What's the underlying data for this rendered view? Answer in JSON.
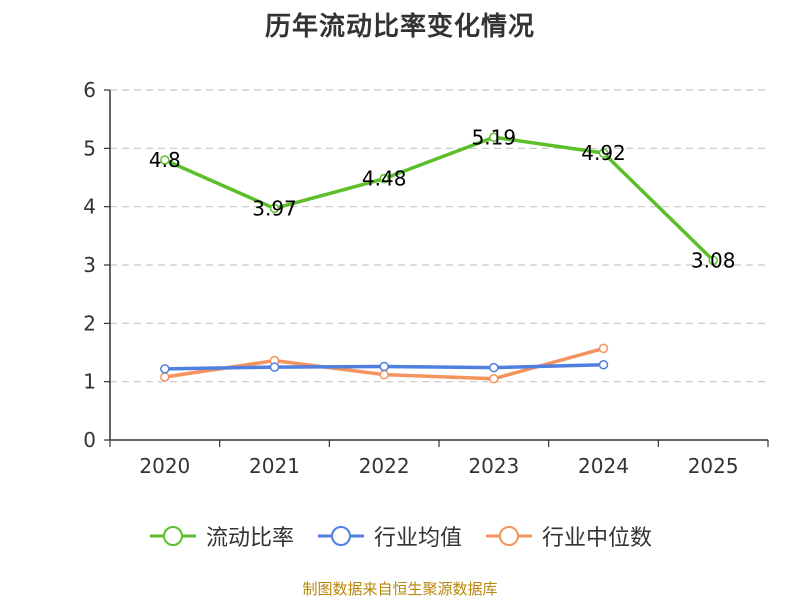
{
  "chart_data": {
    "type": "line",
    "title": "历年流动比率变化情况",
    "categories": [
      "2020",
      "2021",
      "2022",
      "2023",
      "2024",
      "2025"
    ],
    "ylim": [
      0,
      6
    ],
    "yticks": [
      0,
      1,
      2,
      3,
      4,
      5,
      6
    ],
    "grid": true,
    "legend_position": "bottom",
    "series": [
      {
        "name": "流动比率",
        "color": "#5cbf2a",
        "values": [
          4.8,
          3.97,
          4.48,
          5.19,
          4.92,
          3.08
        ],
        "show_labels": true,
        "label_texts": [
          "4.8",
          "3.97",
          "4.48",
          "5.19",
          "4.92",
          "3.08"
        ]
      },
      {
        "name": "行业均值",
        "color": "#4f7fdf",
        "values": [
          1.22,
          1.25,
          1.26,
          1.24,
          1.29,
          null
        ],
        "show_labels": false
      },
      {
        "name": "行业中位数",
        "color": "#f5935e",
        "values": [
          1.08,
          1.36,
          1.12,
          1.05,
          1.57,
          null
        ],
        "show_labels": false
      }
    ]
  },
  "source": "制图数据来自恒生聚源数据库"
}
